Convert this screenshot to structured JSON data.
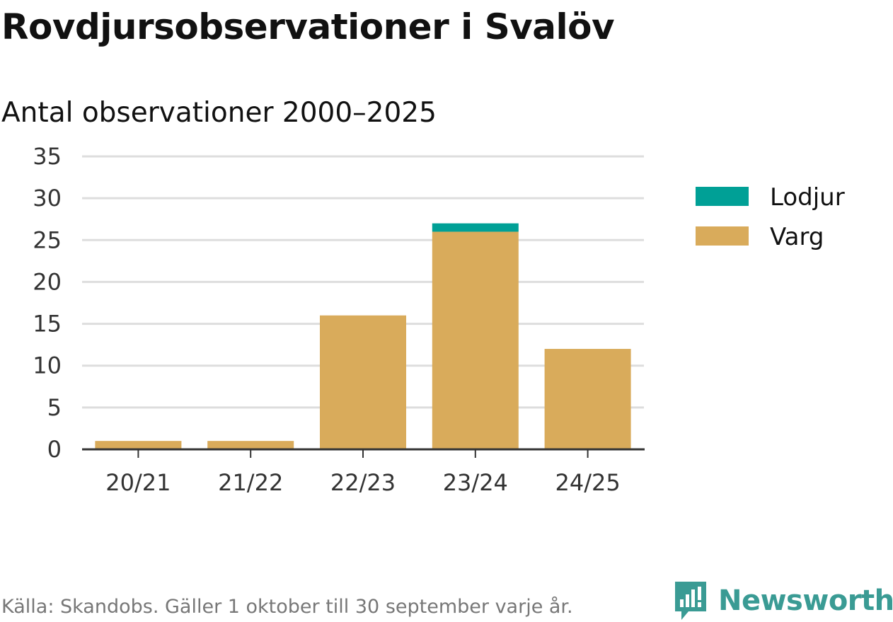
{
  "title": "Rovdjursobservationer i Svalöv",
  "subtitle": "Antal observationer 2000–2025",
  "source": "Källa: Skandobs. Gäller 1 oktober till 30 september varje år.",
  "brand": {
    "name": "Newsworthy",
    "color": "#3a9b94"
  },
  "chart_data": {
    "type": "bar",
    "stacked": true,
    "categories": [
      "20/21",
      "21/22",
      "22/23",
      "23/24",
      "24/25"
    ],
    "series": [
      {
        "name": "Varg",
        "color": "#d9ab5b",
        "values": [
          1,
          1,
          16,
          26,
          12
        ]
      },
      {
        "name": "Lodjur",
        "color": "#00a096",
        "values": [
          0,
          0,
          0,
          1,
          0
        ]
      }
    ],
    "ylim": [
      0,
      35
    ],
    "yticks": [
      0,
      5,
      10,
      15,
      20,
      25,
      30,
      35
    ],
    "grid": true,
    "legend": {
      "position": "right",
      "order": [
        "Lodjur",
        "Varg"
      ]
    }
  }
}
